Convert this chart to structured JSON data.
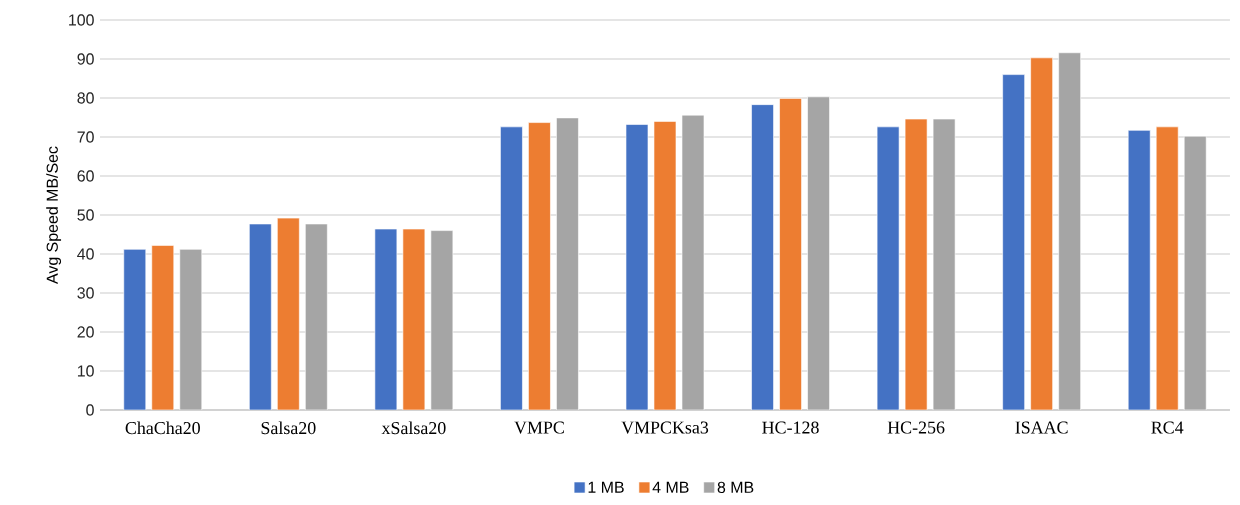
{
  "chart_data": {
    "type": "bar",
    "ylabel": "Avg Speed MB/Sec",
    "categories": [
      "ChaCha20",
      "Salsa20",
      "xSalsa20",
      "VMPC",
      "VMPCKsa3",
      "HC-128",
      "HC-256",
      "ISAAC",
      "RC4"
    ],
    "series": [
      {
        "name": "1 MB",
        "color": "#4472c4",
        "values": [
          41.2,
          47.7,
          46.4,
          72.6,
          73.2,
          78.3,
          72.6,
          86.0,
          71.7
        ]
      },
      {
        "name": "4 MB",
        "color": "#ed7d31",
        "values": [
          42.2,
          49.2,
          46.4,
          73.7,
          74.0,
          79.9,
          74.6,
          90.3,
          72.6
        ]
      },
      {
        "name": "8 MB",
        "color": "#a5a5a5",
        "values": [
          41.2,
          47.7,
          46.0,
          74.9,
          75.6,
          80.3,
          74.6,
          91.6,
          70.2
        ]
      }
    ],
    "ylim": [
      0,
      100
    ],
    "yticks": [
      0,
      10,
      20,
      30,
      40,
      50,
      60,
      70,
      80,
      90,
      100
    ],
    "grid": "y",
    "legend": "bottom"
  }
}
